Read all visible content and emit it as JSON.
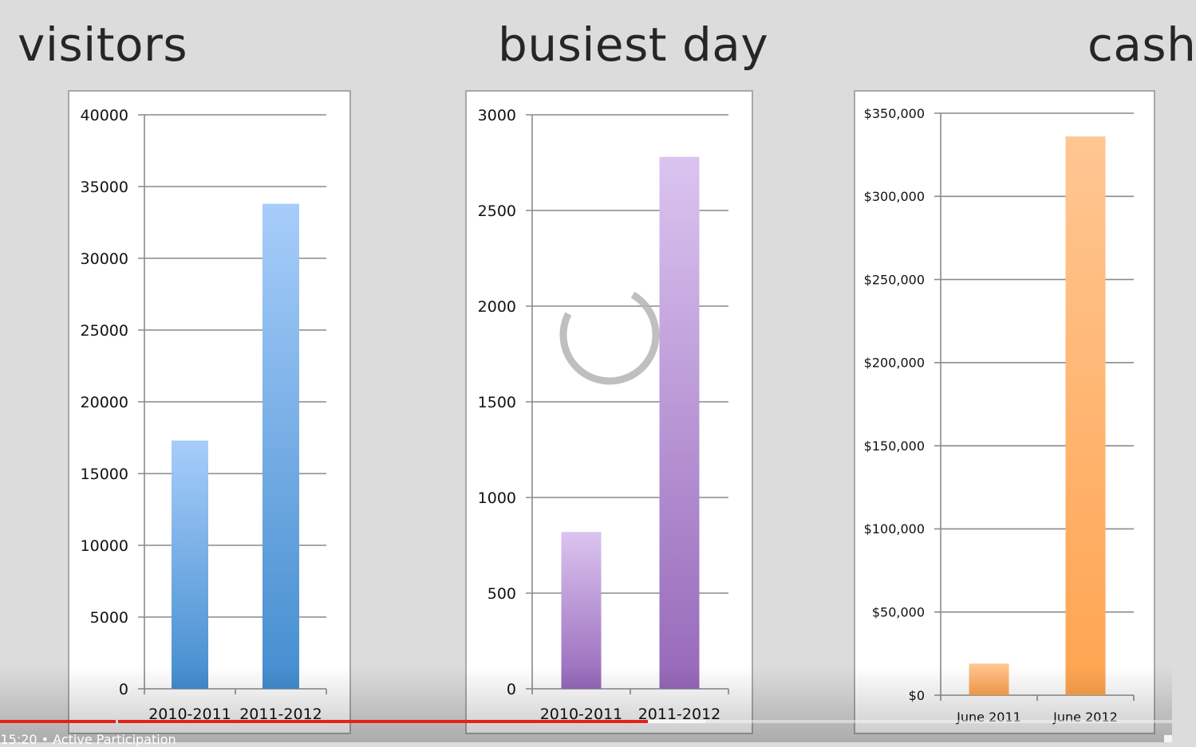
{
  "titles": {
    "visitors": "visitors",
    "busiest_day": "busiest day",
    "cash": "cash"
  },
  "player": {
    "time_text": "/ 15:20 • Active Participation",
    "progress_played": 0.553,
    "progress_buffered": 0.602
  },
  "chart_data": [
    {
      "type": "bar",
      "title": "visitors",
      "categories": [
        "2010-2011",
        "2011-2012"
      ],
      "values": [
        17300,
        33800
      ],
      "ylim": [
        0,
        40000
      ],
      "yticks": [
        0,
        5000,
        10000,
        15000,
        20000,
        25000,
        30000,
        35000,
        40000
      ],
      "ytick_labels": [
        "0",
        "5000",
        "10000",
        "15000",
        "20000",
        "25000",
        "30000",
        "35000",
        "40000"
      ],
      "grid": true,
      "color_top": "#a7cdfa",
      "color_bottom": "#438dcf"
    },
    {
      "type": "bar",
      "title": "busiest day",
      "categories": [
        "2010-2011",
        "2011-2012"
      ],
      "values": [
        820,
        2780
      ],
      "ylim": [
        0,
        3000
      ],
      "yticks": [
        0,
        500,
        1000,
        1500,
        2000,
        2500,
        3000
      ],
      "ytick_labels": [
        "0",
        "500",
        "1000",
        "1500",
        "2000",
        "2500",
        "3000"
      ],
      "grid": true,
      "color_top": "#dbc4f0",
      "color_bottom": "#9668b9"
    },
    {
      "type": "bar",
      "title": "cash",
      "categories": [
        "June 2011",
        "June 2012"
      ],
      "values": [
        19000,
        336000
      ],
      "ylim": [
        0,
        350000
      ],
      "yticks": [
        0,
        50000,
        100000,
        150000,
        200000,
        250000,
        300000,
        350000
      ],
      "ytick_labels": [
        "$0",
        "$50,000",
        "$100,000",
        "$150,000",
        "$200,000",
        "$250,000",
        "$300,000",
        "$350,000"
      ],
      "grid": true,
      "color_top": "#ffc692",
      "color_bottom": "#ffa44f"
    }
  ]
}
